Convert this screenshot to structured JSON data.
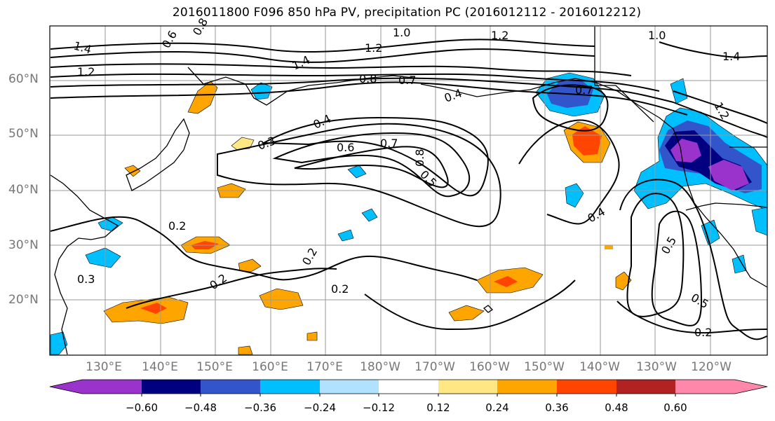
{
  "title": "2016011800 F096 850 hPa PV, precipitation PC (2016012112 - 2016012212)",
  "lat_labels": [
    "60°N",
    "50°N",
    "40°N",
    "30°N",
    "20°N"
  ],
  "lon_labels": [
    "130°E",
    "140°E",
    "150°E",
    "160°E",
    "170°E",
    "180°W",
    "170°W",
    "160°W",
    "150°W",
    "140°W",
    "130°W",
    "120°W"
  ],
  "contour_labels": [
    "1.4",
    "1.2",
    "1.0",
    "1.2",
    "1.0",
    "1.4",
    "1.2",
    "1.4",
    "0.8",
    "0.7",
    "0.4",
    "0.7",
    "0.4",
    "0.3",
    "0.6",
    "0.7",
    "0.8",
    "0.5",
    "0.2",
    "0.2",
    "0.3",
    "0.2",
    "0.4",
    "0.5",
    "0.5",
    "0.2",
    "0.2",
    "1.2",
    "0.6",
    "0.8"
  ],
  "colorbar": {
    "ticks": [
      "−0.60",
      "−0.48",
      "−0.36",
      "−0.24",
      "−0.12",
      "0.12",
      "0.24",
      "0.36",
      "0.48",
      "0.60"
    ],
    "colors": [
      "#9933cc",
      "#000080",
      "#3355cc",
      "#00bfff",
      "#b0e2ff",
      "#ffffff",
      "#ffe884",
      "#ffa500",
      "#ff4500",
      "#b22222",
      "#ff88aa"
    ]
  }
}
